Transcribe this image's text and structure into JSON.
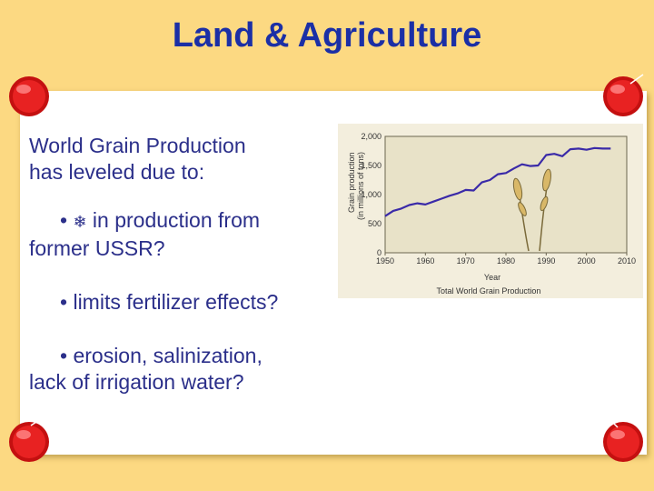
{
  "slide": {
    "title": "Land & Agriculture",
    "lead_line1": "World Grain  Production",
    "lead_line2": "has leveled due to:",
    "bullets": [
      {
        "marker": "•",
        "icon": "snowflake-icon",
        "line1": " in production from",
        "line2": "former USSR?"
      },
      {
        "marker": "•",
        "line1": " limits fertilizer effects?"
      },
      {
        "marker": "•",
        "line1": " erosion, salinization,",
        "line2": "lack of irrigation water?"
      }
    ]
  },
  "colors": {
    "background": "#fcd982",
    "title": "#1b2fa6",
    "body_text": "#2b2f8a",
    "series_line": "#3a2aa8",
    "pushpin": "#d81818"
  },
  "chart_data": {
    "type": "line",
    "title": "Total World Grain Production",
    "xlabel": "Year",
    "ylabel_line1": "Grain production",
    "ylabel_line2": "(in millions of tons)",
    "xlim": [
      1950,
      2010
    ],
    "ylim": [
      0,
      2000
    ],
    "x_ticks": [
      "1950",
      "1960",
      "1970",
      "1980",
      "1990",
      "2000",
      "2010"
    ],
    "y_ticks": [
      "0",
      "500",
      "1,000",
      "1,500",
      "2,000"
    ],
    "series": [
      {
        "x": [
          1950,
          1952,
          1954,
          1956,
          1958,
          1960,
          1962,
          1964,
          1966,
          1968,
          1970,
          1972,
          1974,
          1976,
          1978,
          1980,
          1982,
          1984,
          1986,
          1988,
          1990,
          1992,
          1994,
          1996,
          1998,
          2000,
          2002,
          2004,
          2006
        ],
        "y": [
          630,
          720,
          760,
          820,
          850,
          830,
          880,
          930,
          980,
          1020,
          1080,
          1070,
          1210,
          1250,
          1350,
          1370,
          1450,
          1520,
          1490,
          1500,
          1680,
          1700,
          1660,
          1780,
          1790,
          1770,
          1800,
          1790,
          1790
        ]
      }
    ]
  }
}
